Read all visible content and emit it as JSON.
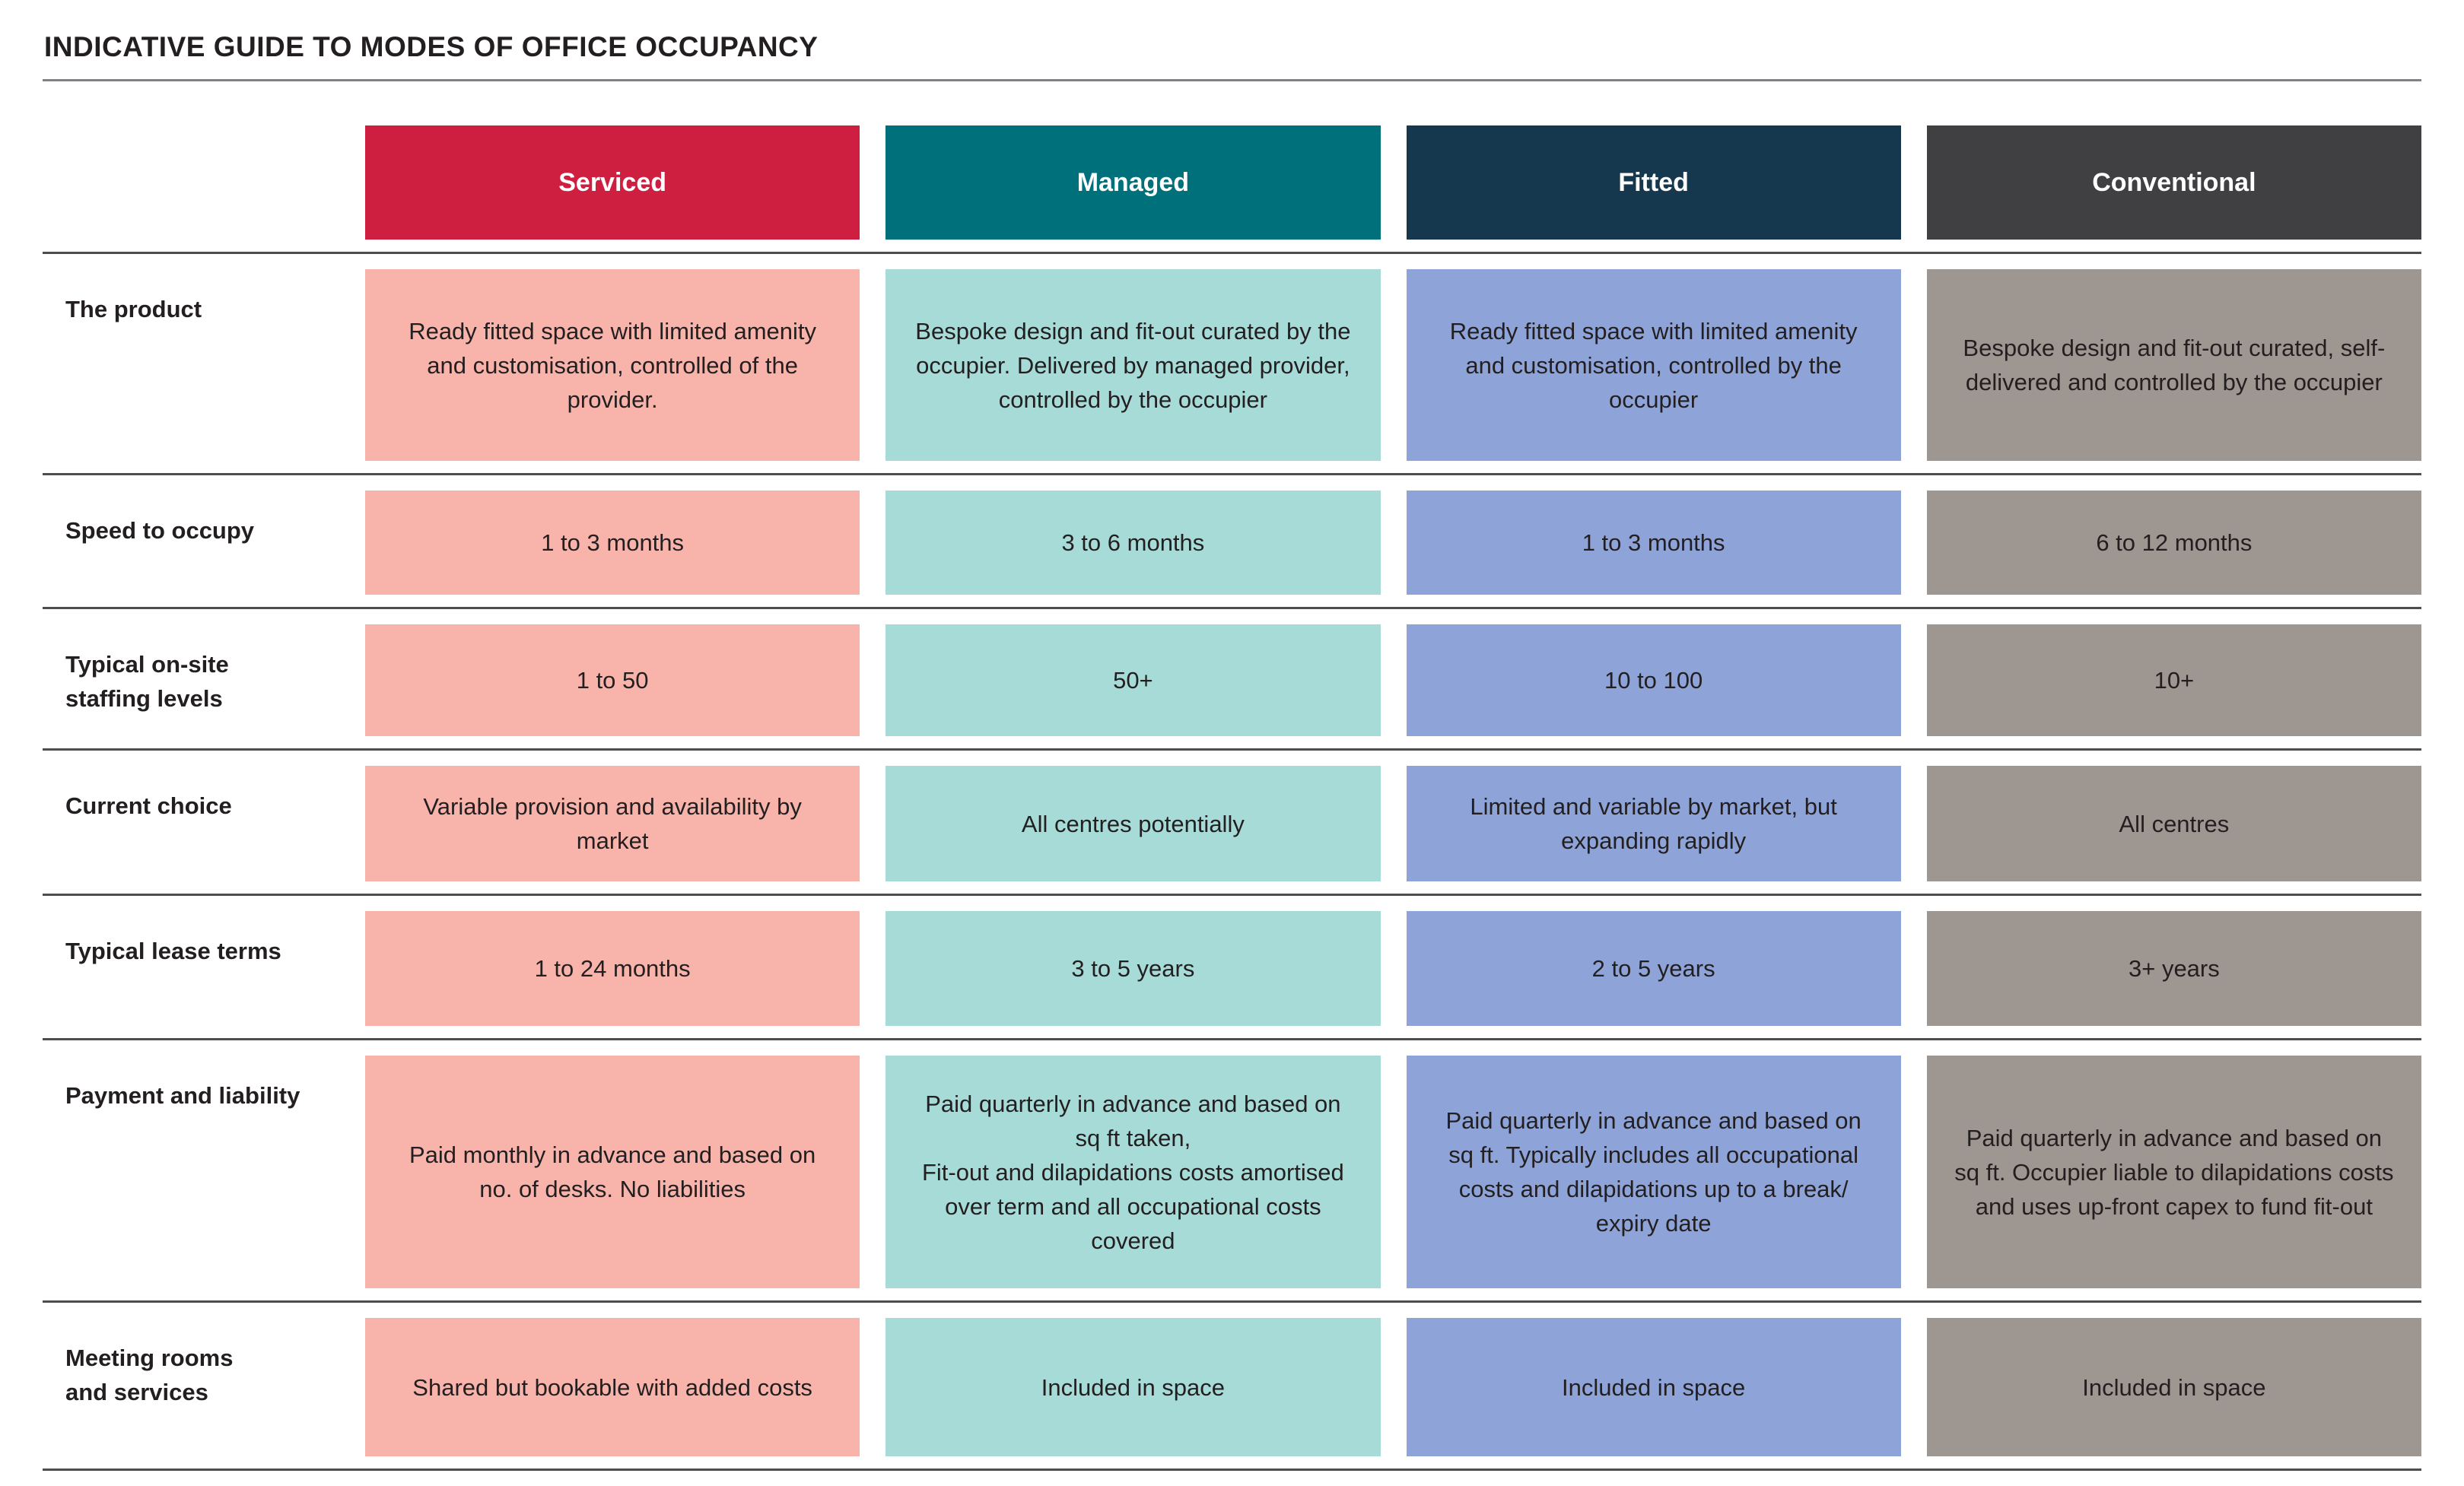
{
  "page": {
    "title": "INDICATIVE GUIDE TO MODES OF OFFICE OCCUPANCY"
  },
  "colors": {
    "text": "#231F20",
    "title_rule": "#808184",
    "row_rule": "#4D4D4F",
    "serviced_header": "#CE1F41",
    "serviced_cell": "#F8B4AB",
    "managed_header": "#00717A",
    "managed_cell": "#A7DBD8",
    "fitted_header": "#16384E",
    "fitted_cell": "#8EA4D9",
    "conventional_header": "#403F41",
    "conventional_cell": "#9D9691"
  },
  "table": {
    "columns": [
      {
        "id": "serviced",
        "label": "Serviced",
        "header_color": "#CE1F41",
        "cell_color": "#F8B4AB"
      },
      {
        "id": "managed",
        "label": "Managed",
        "header_color": "#00717A",
        "cell_color": "#A7DBD8"
      },
      {
        "id": "fitted",
        "label": "Fitted",
        "header_color": "#16384E",
        "cell_color": "#8EA4D9"
      },
      {
        "id": "conventional",
        "label": "Conventional",
        "header_color": "#403F41",
        "cell_color": "#9D9691"
      }
    ],
    "rows": [
      {
        "label": "The product",
        "cells": [
          "Ready fitted space with limited amenity and customisation, controlled of the provider.",
          "Bespoke design and fit-out curated by the occupier. Delivered by managed provider, controlled by the occupier",
          "Ready fitted space with limited amenity and customisation, controlled by the occupier",
          "Bespoke design and fit-out curated, self-delivered and controlled by the occupier"
        ]
      },
      {
        "label": "Speed to occupy",
        "cells": [
          "1 to 3 months",
          "3 to 6 months",
          "1 to 3 months",
          "6 to 12 months"
        ]
      },
      {
        "label": "Typical on-site\nstaffing levels",
        "cells": [
          "1 to 50",
          "50+",
          "10 to 100",
          "10+"
        ]
      },
      {
        "label": "Current choice",
        "cells": [
          "Variable provision and availability by market",
          "All centres potentially",
          "Limited and variable by market, but expanding rapidly",
          "All centres"
        ]
      },
      {
        "label": "Typical lease terms",
        "cells": [
          "1 to 24 months",
          "3 to 5 years",
          "2 to 5 years",
          "3+ years"
        ]
      },
      {
        "label": "Payment and liability",
        "cells": [
          "Paid monthly in advance and based on no. of desks. No liabilities",
          "Paid quarterly in advance and based on sq ft taken,\nFit-out and dilapidations costs amortised over term and all occupational costs covered",
          "Paid quarterly in advance and based on sq ft. Typically includes all occupational costs and dilapidations up to a break/ expiry date",
          "Paid quarterly in advance and based on sq ft. Occupier liable to dilapidations costs and uses up-front capex to fund fit-out"
        ]
      },
      {
        "label": "Meeting rooms\nand services",
        "cells": [
          "Shared but bookable with added costs",
          "Included in space",
          "Included in space",
          "Included in space"
        ]
      }
    ]
  }
}
